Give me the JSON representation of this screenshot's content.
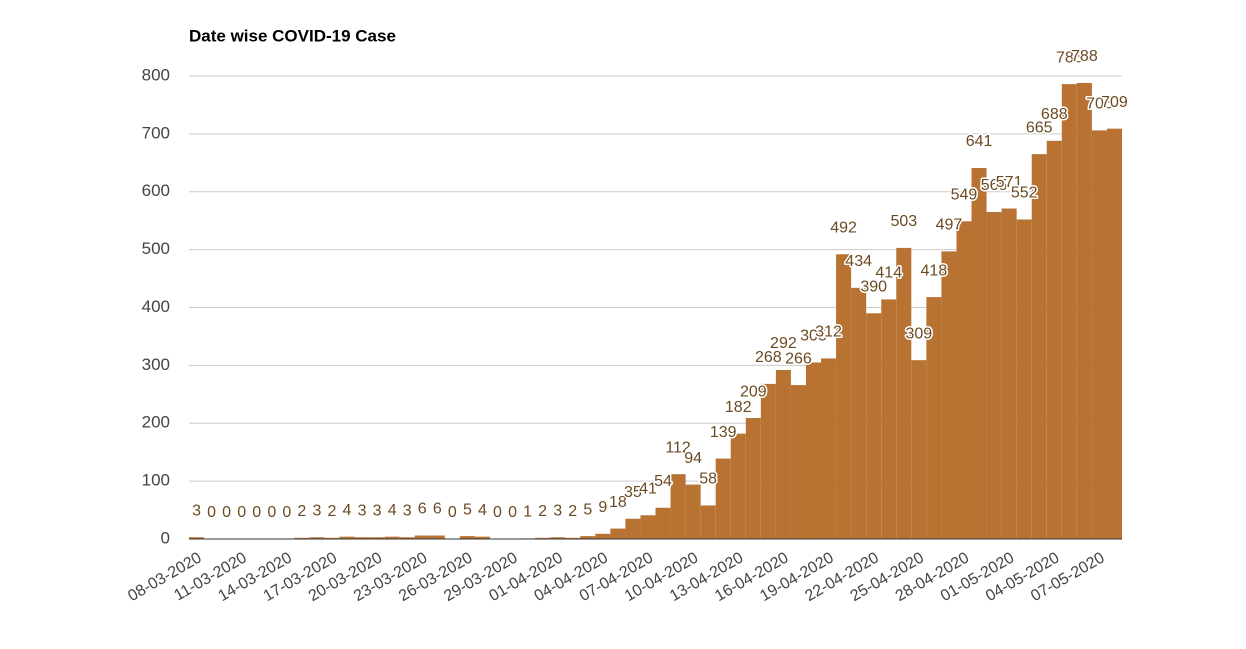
{
  "chart_data": {
    "type": "bar",
    "title": "Date wise COVID-19 Case",
    "categories": [
      "08-03-2020",
      null,
      null,
      "11-03-2020",
      null,
      null,
      "14-03-2020",
      null,
      null,
      "17-03-2020",
      null,
      null,
      "20-03-2020",
      null,
      null,
      "23-03-2020",
      null,
      null,
      "26-03-2020",
      null,
      null,
      "29-03-2020",
      null,
      null,
      "01-04-2020",
      null,
      null,
      "04-04-2020",
      null,
      null,
      "07-04-2020",
      null,
      null,
      "10-04-2020",
      null,
      null,
      "13-04-2020",
      null,
      null,
      "16-04-2020",
      null,
      null,
      "19-04-2020",
      null,
      null,
      "22-04-2020",
      null,
      null,
      "25-04-2020",
      null,
      null,
      "28-04-2020",
      null,
      null,
      "01-05-2020",
      null,
      null,
      "04-05-2020",
      null,
      null,
      "07-05-2020",
      null
    ],
    "values": [
      3,
      0,
      0,
      0,
      0,
      0,
      0,
      2,
      3,
      2,
      4,
      3,
      3,
      4,
      3,
      6,
      6,
      0,
      5,
      4,
      0,
      0,
      1,
      2,
      3,
      2,
      5,
      9,
      18,
      35,
      41,
      54,
      112,
      94,
      58,
      139,
      182,
      209,
      268,
      292,
      266,
      305,
      312,
      492,
      434,
      390,
      414,
      503,
      309,
      418,
      497,
      549,
      641,
      565,
      571,
      552,
      665,
      688,
      786,
      788,
      706,
      709
    ],
    "color": "#b87333",
    "ylim": [
      0,
      800
    ],
    "yticks": [
      0,
      100,
      200,
      300,
      400,
      500,
      600,
      700,
      800
    ],
    "grid": true
  }
}
